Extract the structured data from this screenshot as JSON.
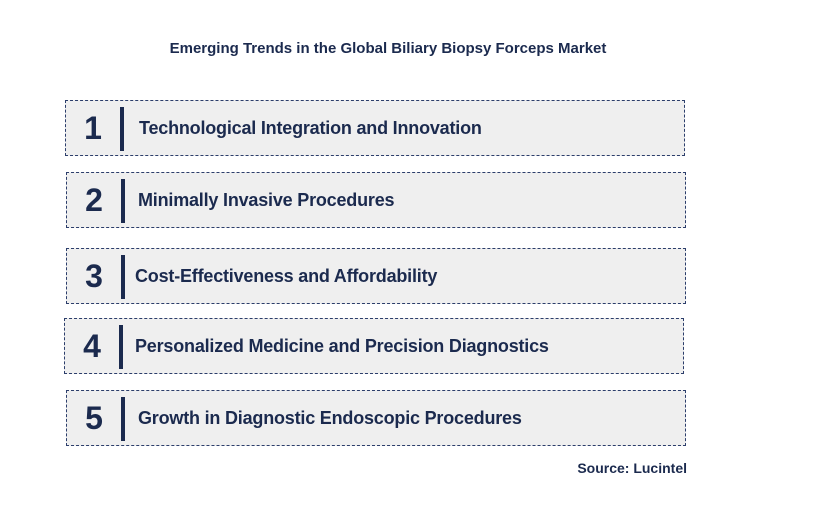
{
  "title": "Emerging Trends in the Global Biliary Biopsy Forceps Market",
  "trends": [
    {
      "number": "1",
      "label": "Technological Integration and Innovation"
    },
    {
      "number": "2",
      "label": "Minimally Invasive Procedures"
    },
    {
      "number": "3",
      "label": "Cost-Effectiveness and Affordability"
    },
    {
      "number": "4",
      "label": "Personalized Medicine and Precision Diagnostics"
    },
    {
      "number": "5",
      "label": "Growth in Diagnostic Endoscopic Procedures"
    }
  ],
  "source": "Source: Lucintel",
  "colors": {
    "text": "#1b2a4e",
    "box_background": "#efefef",
    "box_border": "#2c3e6b"
  }
}
